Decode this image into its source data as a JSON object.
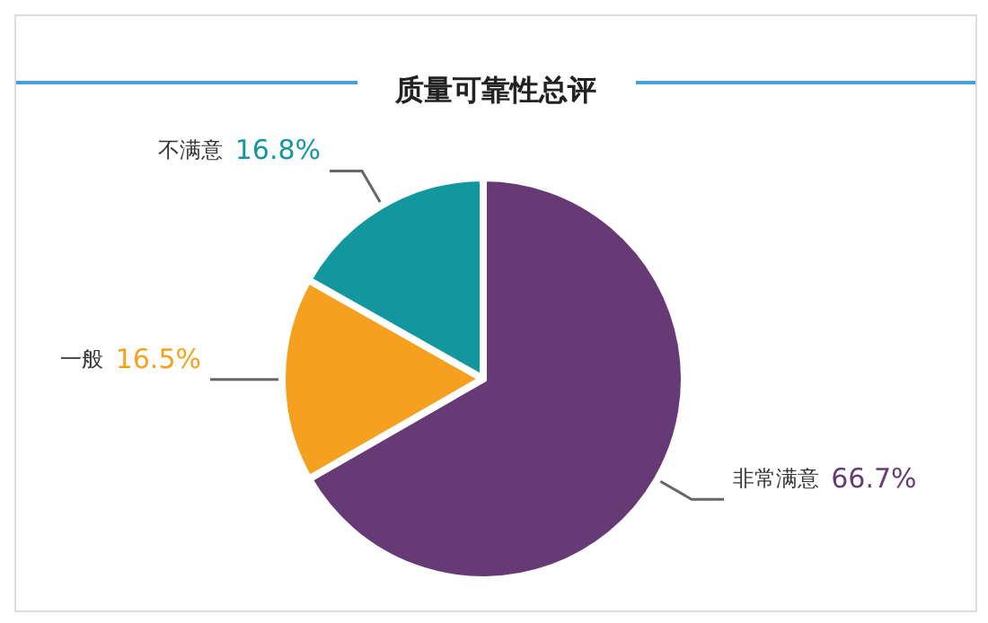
{
  "chart_data": {
    "type": "pie",
    "title": "质量可靠性总评",
    "categories": [
      "非常满意",
      "一般",
      "不满意"
    ],
    "values": [
      66.7,
      16.5,
      16.8
    ],
    "value_labels": [
      "66.7%",
      "16.5%",
      "16.8%"
    ],
    "colors": [
      "#663a75",
      "#f5a11f",
      "#12979f"
    ],
    "legend": false
  }
}
